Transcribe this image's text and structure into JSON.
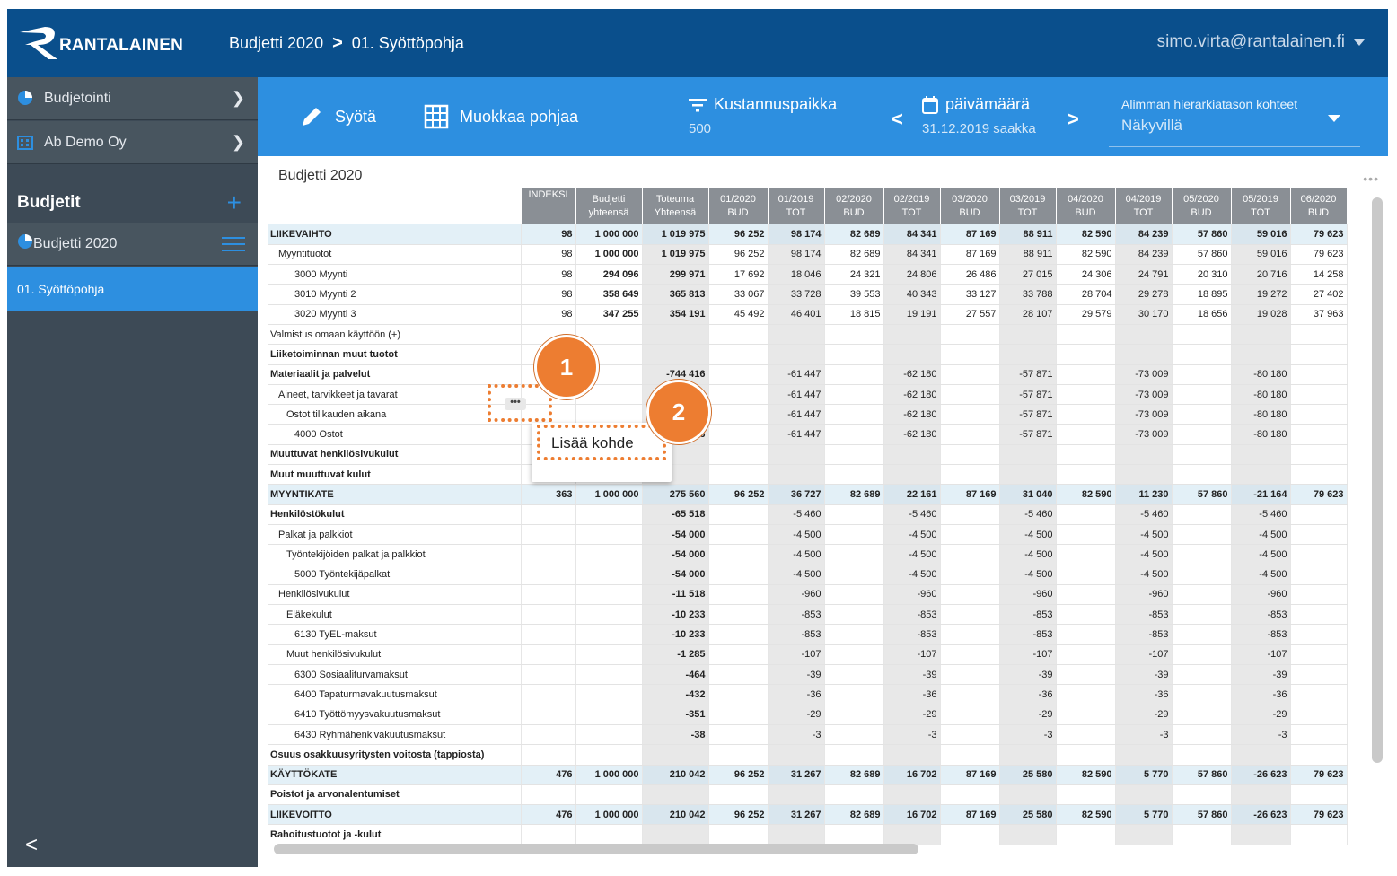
{
  "header": {
    "logo_text": "RANTALAINEN",
    "crumb1": "Budjetti 2020",
    "crumb_sep": ">",
    "crumb2": "01. Syöttöpohja",
    "user": "simo.virta@rantalainen.fi"
  },
  "sidebar": {
    "item1": "Budjetointi",
    "item2": "Ab Demo Oy",
    "section": "Budjetit",
    "plus": "+",
    "budget": "Budjetti 2020",
    "active": "01. Syöttöpohja",
    "collapse": "<"
  },
  "toolbar": {
    "syota": "Syötä",
    "muokkaa": "Muokkaa pohjaa",
    "filter_title": "Kustannuspaikka",
    "filter_value": "500",
    "date_title": "päivämäärä",
    "date_value": "31.12.2019 saakka",
    "prev": "<",
    "next": ">",
    "select_label": "Alimman hierarkiatason kohteet",
    "select_value": "Näkyvillä"
  },
  "grid": {
    "title": "Budjetti 2020",
    "more": "•••",
    "columns": [
      {
        "l1": "INDEKSI",
        "l2": ""
      },
      {
        "l1": "Budjetti",
        "l2": "yhteensä"
      },
      {
        "l1": "Toteuma",
        "l2": "Yhteensä"
      },
      {
        "l1": "01/2020",
        "l2": "BUD"
      },
      {
        "l1": "01/2019",
        "l2": "TOT"
      },
      {
        "l1": "02/2020",
        "l2": "BUD"
      },
      {
        "l1": "02/2019",
        "l2": "TOT"
      },
      {
        "l1": "03/2020",
        "l2": "BUD"
      },
      {
        "l1": "03/2019",
        "l2": "TOT"
      },
      {
        "l1": "04/2020",
        "l2": "BUD"
      },
      {
        "l1": "04/2019",
        "l2": "TOT"
      },
      {
        "l1": "05/2020",
        "l2": "BUD"
      },
      {
        "l1": "05/2019",
        "l2": "TOT"
      },
      {
        "l1": "06/2020",
        "l2": "BUD"
      }
    ],
    "rows": [
      {
        "name": "LIIKEVAIHTO",
        "indent": 0,
        "style": "sum",
        "v": [
          "98",
          "1 000 000",
          "1 019 975",
          "96 252",
          "98 174",
          "82 689",
          "84 341",
          "87 169",
          "88 911",
          "82 590",
          "84 239",
          "57 860",
          "59 016",
          "79 623"
        ]
      },
      {
        "name": "Myyntituotot",
        "indent": 1,
        "style": "",
        "v": [
          "98",
          "1 000 000",
          "1 019 975",
          "96 252",
          "98 174",
          "82 689",
          "84 341",
          "87 169",
          "88 911",
          "82 590",
          "84 239",
          "57 860",
          "59 016",
          "79 623"
        ]
      },
      {
        "name": "3000 Myynti",
        "indent": 3,
        "style": "",
        "v": [
          "98",
          "294 096",
          "299 971",
          "17 692",
          "18 046",
          "24 321",
          "24 806",
          "26 486",
          "27 015",
          "24 306",
          "24 791",
          "20 310",
          "20 716",
          "14 258"
        ]
      },
      {
        "name": "3010 Myynti 2",
        "indent": 3,
        "style": "",
        "v": [
          "98",
          "358 649",
          "365 813",
          "33 067",
          "33 728",
          "39 553",
          "40 343",
          "33 127",
          "33 788",
          "28 704",
          "29 278",
          "18 895",
          "19 272",
          "27 402"
        ]
      },
      {
        "name": "3020 Myynti 3",
        "indent": 3,
        "style": "",
        "v": [
          "98",
          "347 255",
          "354 191",
          "45 492",
          "46 401",
          "18 815",
          "19 191",
          "27 557",
          "28 107",
          "29 579",
          "30 170",
          "18 656",
          "19 028",
          "37 963"
        ]
      },
      {
        "name": "Valmistus omaan käyttöön (+)",
        "indent": 0,
        "style": "",
        "v": [
          "",
          "",
          "",
          "",
          "",
          "",
          "",
          "",
          "",
          "",
          "",
          "",
          "",
          ""
        ]
      },
      {
        "name": "Liiketoiminnan muut tuotot",
        "indent": 0,
        "style": "bold",
        "v": [
          "",
          "",
          "",
          "",
          "",
          "",
          "",
          "",
          "",
          "",
          "",
          "",
          "",
          ""
        ]
      },
      {
        "name": "Materiaalit ja palvelut",
        "indent": 0,
        "style": "bold",
        "v": [
          "",
          "",
          "-744 416",
          "",
          "-61 447",
          "",
          "-62 180",
          "",
          "-57 871",
          "",
          "-73 009",
          "",
          "-80 180",
          ""
        ]
      },
      {
        "name": "Aineet, tarvikkeet ja tavarat",
        "indent": 1,
        "style": "",
        "v": [
          "",
          "",
          "",
          "",
          "-61 447",
          "",
          "-62 180",
          "",
          "-57 871",
          "",
          "-73 009",
          "",
          "-80 180",
          ""
        ]
      },
      {
        "name": "Ostot tilikauden aikana",
        "indent": 2,
        "style": "",
        "v": [
          "",
          "",
          "",
          "",
          "-61 447",
          "",
          "-62 180",
          "",
          "-57 871",
          "",
          "-73 009",
          "",
          "-80 180",
          ""
        ]
      },
      {
        "name": "4000 Ostot",
        "indent": 3,
        "style": "",
        "v": [
          "",
          "",
          "-744 416",
          "",
          "-61 447",
          "",
          "-62 180",
          "",
          "-57 871",
          "",
          "-73 009",
          "",
          "-80 180",
          ""
        ]
      },
      {
        "name": "Muuttuvat henkilösivukulut",
        "indent": 0,
        "style": "bold",
        "v": [
          "",
          "",
          "",
          "",
          "",
          "",
          "",
          "",
          "",
          "",
          "",
          "",
          "",
          ""
        ]
      },
      {
        "name": "Muut muuttuvat kulut",
        "indent": 0,
        "style": "bold",
        "v": [
          "",
          "",
          "",
          "",
          "",
          "",
          "",
          "",
          "",
          "",
          "",
          "",
          "",
          ""
        ]
      },
      {
        "name": "MYYNTIKATE",
        "indent": 0,
        "style": "sum",
        "v": [
          "363",
          "1 000 000",
          "275 560",
          "96 252",
          "36 727",
          "82 689",
          "22 161",
          "87 169",
          "31 040",
          "82 590",
          "11 230",
          "57 860",
          "-21 164",
          "79 623"
        ]
      },
      {
        "name": "Henkilöstökulut",
        "indent": 0,
        "style": "bold",
        "v": [
          "",
          "",
          "-65 518",
          "",
          "-5 460",
          "",
          "-5 460",
          "",
          "-5 460",
          "",
          "-5 460",
          "",
          "-5 460",
          ""
        ]
      },
      {
        "name": "Palkat ja palkkiot",
        "indent": 1,
        "style": "",
        "v": [
          "",
          "",
          "-54 000",
          "",
          "-4 500",
          "",
          "-4 500",
          "",
          "-4 500",
          "",
          "-4 500",
          "",
          "-4 500",
          ""
        ]
      },
      {
        "name": "Työntekijöiden palkat ja palkkiot",
        "indent": 2,
        "style": "",
        "v": [
          "",
          "",
          "-54 000",
          "",
          "-4 500",
          "",
          "-4 500",
          "",
          "-4 500",
          "",
          "-4 500",
          "",
          "-4 500",
          ""
        ]
      },
      {
        "name": "5000 Työntekijäpalkat",
        "indent": 3,
        "style": "",
        "v": [
          "",
          "",
          "-54 000",
          "",
          "-4 500",
          "",
          "-4 500",
          "",
          "-4 500",
          "",
          "-4 500",
          "",
          "-4 500",
          ""
        ]
      },
      {
        "name": "Henkilösivukulut",
        "indent": 1,
        "style": "",
        "v": [
          "",
          "",
          "-11 518",
          "",
          "-960",
          "",
          "-960",
          "",
          "-960",
          "",
          "-960",
          "",
          "-960",
          ""
        ]
      },
      {
        "name": "Eläkekulut",
        "indent": 2,
        "style": "",
        "v": [
          "",
          "",
          "-10 233",
          "",
          "-853",
          "",
          "-853",
          "",
          "-853",
          "",
          "-853",
          "",
          "-853",
          ""
        ]
      },
      {
        "name": "6130 TyEL-maksut",
        "indent": 3,
        "style": "",
        "v": [
          "",
          "",
          "-10 233",
          "",
          "-853",
          "",
          "-853",
          "",
          "-853",
          "",
          "-853",
          "",
          "-853",
          ""
        ]
      },
      {
        "name": "Muut henkilösivukulut",
        "indent": 2,
        "style": "",
        "v": [
          "",
          "",
          "-1 285",
          "",
          "-107",
          "",
          "-107",
          "",
          "-107",
          "",
          "-107",
          "",
          "-107",
          ""
        ]
      },
      {
        "name": "6300 Sosiaaliturvamaksut",
        "indent": 3,
        "style": "",
        "v": [
          "",
          "",
          "-464",
          "",
          "-39",
          "",
          "-39",
          "",
          "-39",
          "",
          "-39",
          "",
          "-39",
          ""
        ]
      },
      {
        "name": "6400 Tapaturmavakuutusmaksut",
        "indent": 3,
        "style": "",
        "v": [
          "",
          "",
          "-432",
          "",
          "-36",
          "",
          "-36",
          "",
          "-36",
          "",
          "-36",
          "",
          "-36",
          ""
        ]
      },
      {
        "name": "6410 Työttömyysvakuutusmaksut",
        "indent": 3,
        "style": "",
        "v": [
          "",
          "",
          "-351",
          "",
          "-29",
          "",
          "-29",
          "",
          "-29",
          "",
          "-29",
          "",
          "-29",
          ""
        ]
      },
      {
        "name": "6430 Ryhmähenkivakuutusmaksut",
        "indent": 3,
        "style": "",
        "v": [
          "",
          "",
          "-38",
          "",
          "-3",
          "",
          "-3",
          "",
          "-3",
          "",
          "-3",
          "",
          "-3",
          ""
        ]
      },
      {
        "name": "Osuus osakkuusyritysten voitosta (tappiosta)",
        "indent": 0,
        "style": "bold",
        "v": [
          "",
          "",
          "",
          "",
          "",
          "",
          "",
          "",
          "",
          "",
          "",
          "",
          "",
          ""
        ]
      },
      {
        "name": "KÄYTTÖKATE",
        "indent": 0,
        "style": "sum",
        "v": [
          "476",
          "1 000 000",
          "210 042",
          "96 252",
          "31 267",
          "82 689",
          "16 702",
          "87 169",
          "25 580",
          "82 590",
          "5 770",
          "57 860",
          "-26 623",
          "79 623"
        ]
      },
      {
        "name": "Poistot ja arvonalentumiset",
        "indent": 0,
        "style": "bold",
        "v": [
          "",
          "",
          "",
          "",
          "",
          "",
          "",
          "",
          "",
          "",
          "",
          "",
          "",
          ""
        ]
      },
      {
        "name": "LIIKEVOITTO",
        "indent": 0,
        "style": "sum",
        "v": [
          "476",
          "1 000 000",
          "210 042",
          "96 252",
          "31 267",
          "82 689",
          "16 702",
          "87 169",
          "25 580",
          "82 590",
          "5 770",
          "57 860",
          "-26 623",
          "79 623"
        ]
      },
      {
        "name": "Rahoitustuotot ja -kulut",
        "indent": 0,
        "style": "bold",
        "v": [
          "",
          "",
          "",
          "",
          "",
          "",
          "",
          "",
          "",
          "",
          "",
          "",
          "",
          ""
        ]
      }
    ]
  },
  "overlay": {
    "badge1": "1",
    "badge2": "2",
    "row_menu": "•••",
    "popup_item": "Lisää kohde"
  },
  "colors": {
    "header_bg": "#0a4f8c",
    "toolbar_bg": "#2d8fe0",
    "sidebar_bg": "#3d4a56",
    "highlight": "#ed7d31",
    "sum_row": "#e3f0f7"
  }
}
